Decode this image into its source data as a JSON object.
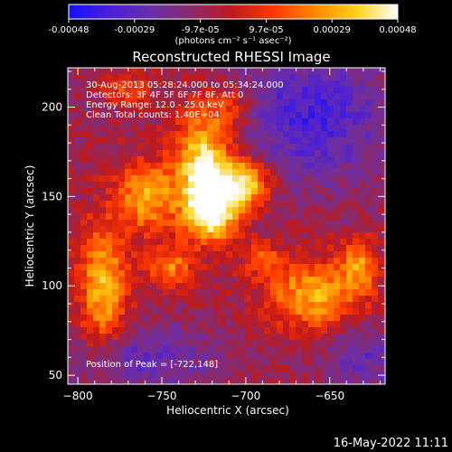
{
  "colorbar": {
    "ticks": [
      "-0.00048",
      "-0.00029",
      "-9.7e-05",
      "9.7e-05",
      "0.00029",
      "0.00048"
    ],
    "units": "(photons cm⁻² s⁻¹ asec⁻²)",
    "colors": [
      "#1410ff",
      "#4b1fd6",
      "#6a2ea8",
      "#8a2a6a",
      "#c11a1a",
      "#ff3a00",
      "#ff8a00",
      "#ffd21a",
      "#ffffff"
    ]
  },
  "chart_data": {
    "type": "heatmap",
    "title": "Reconstructed RHESSI Image",
    "xlabel": "Heliocentric X (arcsec)",
    "ylabel": "Heliocentric Y (arcsec)",
    "xlim": [
      -806,
      -617
    ],
    "ylim": [
      45,
      222
    ],
    "xticks": [
      -800,
      -750,
      -700,
      -650
    ],
    "yticks": [
      50,
      100,
      150,
      200
    ],
    "annotations": [
      "30-Aug-2013 05:28:24.000 to 05:34:24.000",
      "Detectors: 3F 4F 5F 6F 7F 8F, Att 0",
      "Energy Range: 12.0 - 25.0 keV",
      "Clean     Total counts: 1.40E+04"
    ],
    "peak_label": "Position of Peak = [-722,148]",
    "peak": [
      -722,
      148
    ],
    "sources": [
      {
        "x": -725,
        "y": 168,
        "amp": 1.0,
        "sx": 12,
        "sy": 20
      },
      {
        "x": -720,
        "y": 142,
        "amp": 0.95,
        "sx": 12,
        "sy": 12
      },
      {
        "x": -700,
        "y": 158,
        "amp": 0.85,
        "sx": 10,
        "sy": 9
      },
      {
        "x": -760,
        "y": 150,
        "amp": 0.7,
        "sx": 12,
        "sy": 14
      },
      {
        "x": -785,
        "y": 100,
        "amp": 0.75,
        "sx": 10,
        "sy": 25
      },
      {
        "x": -745,
        "y": 110,
        "amp": 0.55,
        "sx": 10,
        "sy": 8
      },
      {
        "x": -660,
        "y": 95,
        "amp": 0.7,
        "sx": 20,
        "sy": 14
      },
      {
        "x": -632,
        "y": 112,
        "amp": 0.55,
        "sx": 8,
        "sy": 10
      },
      {
        "x": -690,
        "y": 115,
        "amp": 0.4,
        "sx": 8,
        "sy": 6
      },
      {
        "x": -770,
        "y": 210,
        "amp": 0.4,
        "sx": 10,
        "sy": 6
      },
      {
        "x": -710,
        "y": 200,
        "amp": 0.35,
        "sx": 10,
        "sy": 8
      }
    ],
    "background": [
      {
        "x": -660,
        "y": 195,
        "amp": -0.55,
        "sx": 30,
        "sy": 25
      },
      {
        "x": -760,
        "y": 60,
        "amp": -0.4,
        "sx": 30,
        "sy": 12
      },
      {
        "x": -630,
        "y": 60,
        "amp": -0.35,
        "sx": 18,
        "sy": 12
      }
    ]
  },
  "footer": {
    "date": "16-May-2022 11:11"
  }
}
